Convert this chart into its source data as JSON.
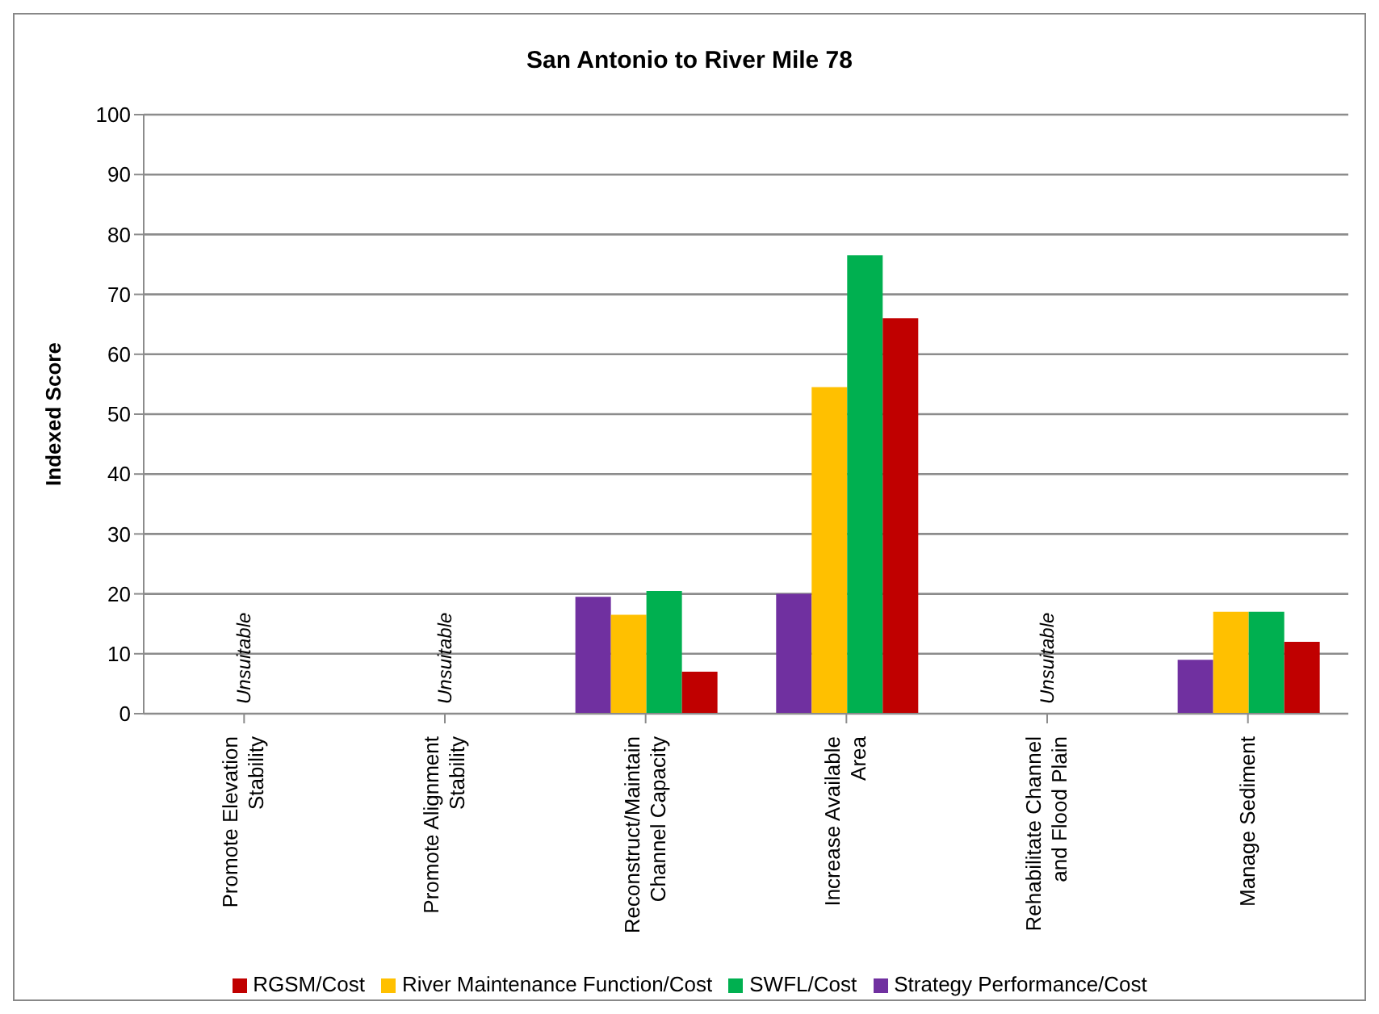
{
  "chart_data": {
    "type": "bar",
    "title": "San Antonio to River Mile 78",
    "ylabel": "Indexed Score",
    "categories": [
      "Promote Elevation Stability",
      "Promote Alignment Stability",
      "Reconstruct/Maintain Channel Capacity",
      "Increase Available Area",
      "Rehabilitate Channel and Flood Plain",
      "Manage Sediment"
    ],
    "series": [
      {
        "name": "Strategy Performance/Cost",
        "color": "#7030a0",
        "values": [
          null,
          null,
          19.5,
          20,
          null,
          9
        ]
      },
      {
        "name": "River Maintenance Function/Cost",
        "color": "#ffc000",
        "values": [
          null,
          null,
          16.5,
          54.5,
          null,
          17
        ]
      },
      {
        "name": "SWFL/Cost",
        "color": "#00b050",
        "values": [
          null,
          null,
          20.5,
          76.5,
          null,
          17
        ]
      },
      {
        "name": "RGSM/Cost",
        "color": "#c00000",
        "values": [
          null,
          null,
          7,
          66,
          null,
          12
        ]
      }
    ],
    "ylim": [
      0,
      100
    ],
    "yticks": [
      0,
      10,
      20,
      30,
      40,
      50,
      60,
      70,
      80,
      90,
      100
    ],
    "grid": "y",
    "legend": "bottom",
    "annotations": [
      "Unsuitable",
      "Unsuitable",
      "Unsuitable"
    ]
  }
}
